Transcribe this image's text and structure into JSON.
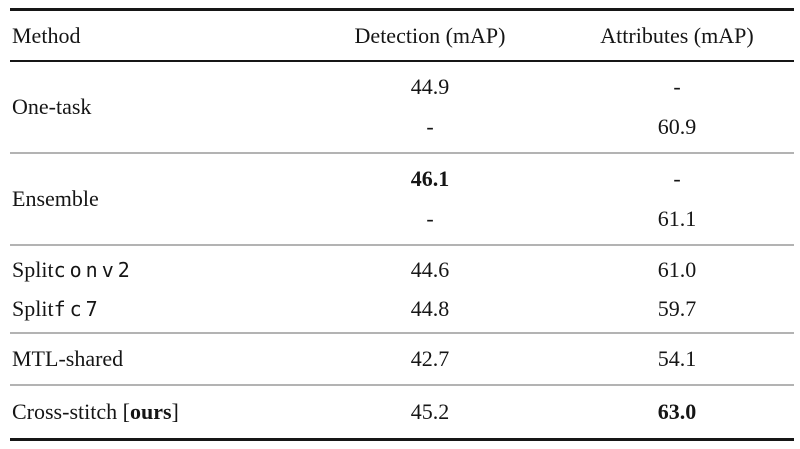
{
  "table": {
    "header": {
      "method": "Method",
      "detection": "Detection (mAP)",
      "attributes": "Attributes (mAP)"
    },
    "groups": [
      {
        "method": {
          "text": "One-task"
        },
        "rows": [
          {
            "detection": "44.9",
            "attributes": "-"
          },
          {
            "detection": "-",
            "attributes": "60.9"
          }
        ]
      },
      {
        "method": {
          "text": "Ensemble"
        },
        "rows": [
          {
            "detection": "46.1",
            "attributes": "-"
          },
          {
            "detection": "-",
            "attributes": "61.1"
          }
        ]
      },
      {
        "rows": [
          {
            "method": {
              "text": "Split ",
              "mono": "conv2"
            },
            "detection": "44.6",
            "attributes": "61.0"
          },
          {
            "method": {
              "text": "Split ",
              "mono": "fc7"
            },
            "detection": "44.8",
            "attributes": "59.7"
          }
        ]
      },
      {
        "rows": [
          {
            "method": {
              "text": "MTL-shared"
            },
            "detection": "42.7",
            "attributes": "54.1"
          }
        ]
      },
      {
        "rows": [
          {
            "method": {
              "text": "Cross-stitch [",
              "bold": "ours",
              "suffix": "]"
            },
            "detection": "45.2",
            "attributes": "63.0"
          }
        ]
      }
    ]
  }
}
